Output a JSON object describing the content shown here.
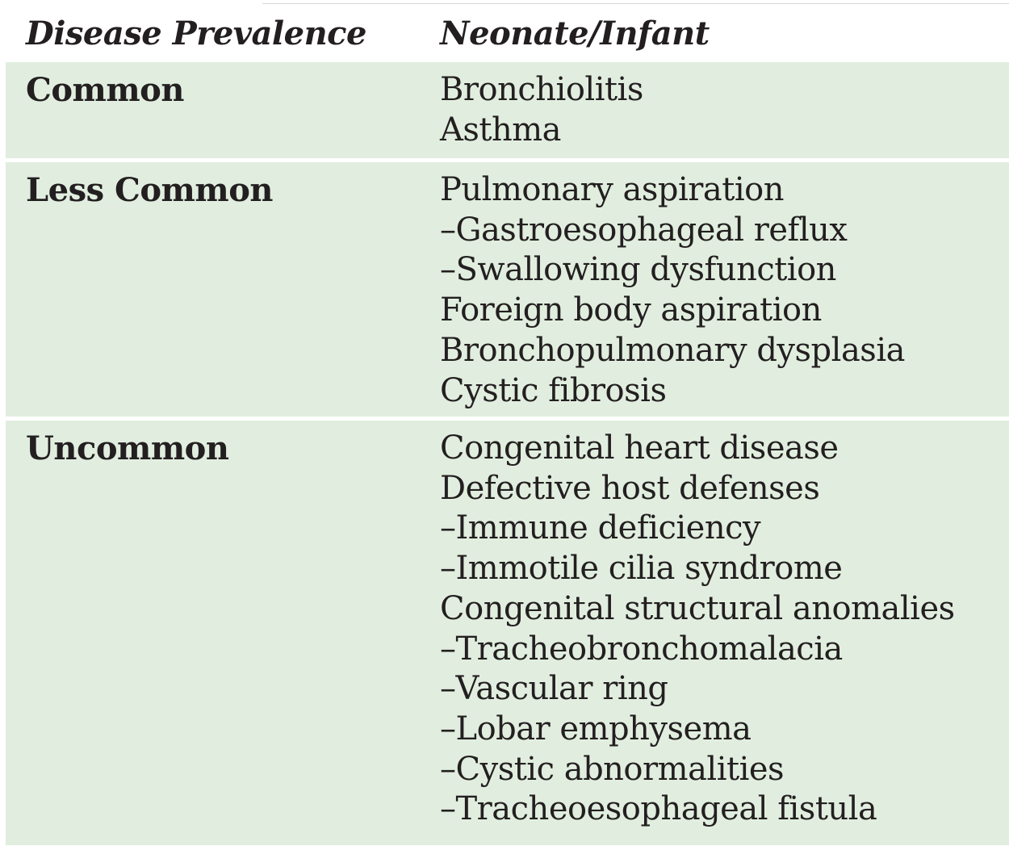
{
  "table": {
    "headers": [
      "Disease Prevalence",
      "Neonate/Infant"
    ],
    "rows": [
      {
        "prevalence": "Common",
        "conditions": [
          "Bronchiolitis",
          "Asthma"
        ]
      },
      {
        "prevalence": "Less Common",
        "conditions": [
          "Pulmonary aspiration",
          "–Gastroesophageal reflux",
          "–Swallowing dysfunction",
          "Foreign body aspiration",
          "Bronchopulmonary dysplasia",
          "Cystic fibrosis"
        ]
      },
      {
        "prevalence": "Uncommon",
        "conditions": [
          "Congenital heart disease",
          "Defective host defenses",
          "–Immune deficiency",
          "–Immotile cilia syndrome",
          "Congenital structural anomalies",
          "–Tracheobronchomalacia",
          "–Vascular ring",
          "–Lobar emphysema",
          "–Cystic abnormalities",
          "–Tracheoesophageal fistula"
        ]
      }
    ]
  },
  "colors": {
    "row_fill": "#e1eedf",
    "text": "#231f20"
  }
}
